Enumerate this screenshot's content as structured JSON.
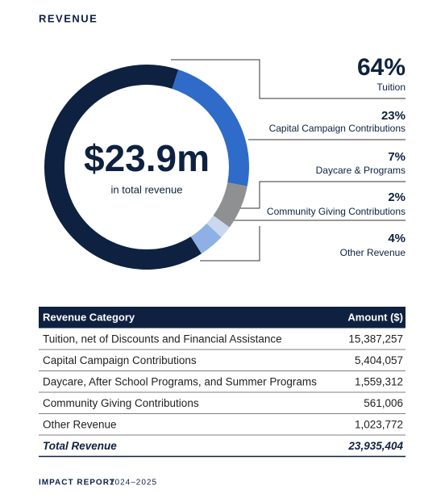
{
  "chart_data": {
    "type": "donut",
    "title": "REVENUE",
    "center_value": "$23.9m",
    "center_label": "in total revenue",
    "categories": [
      "Tuition",
      "Capital Campaign Contributions",
      "Daycare & Programs",
      "Community Giving Contributions",
      "Other Revenue"
    ],
    "values": [
      64,
      23,
      7,
      2,
      4
    ],
    "value_labels": [
      "64%",
      "23%",
      "7%",
      "2%",
      "4%"
    ],
    "colors": [
      "#0e2140",
      "#2f6bc8",
      "#8f9091",
      "#c9d8ee",
      "#8fb0e6"
    ]
  },
  "table": {
    "columns": [
      "Revenue Category",
      "Amount ($)"
    ],
    "rows": [
      [
        "Tuition, net of Discounts and Financial Assistance",
        "15,387,257"
      ],
      [
        "Capital Campaign Contributions",
        "5,404,057"
      ],
      [
        "Daycare, After School Programs, and Summer Programs",
        "1,559,312"
      ],
      [
        "Community Giving Contributions",
        "561,006"
      ],
      [
        "Other Revenue",
        "1,023,772"
      ]
    ],
    "total": [
      "Total Revenue",
      "23,935,404"
    ]
  },
  "footer": {
    "label": "IMPACT REPORT",
    "years": "2024–2025"
  }
}
